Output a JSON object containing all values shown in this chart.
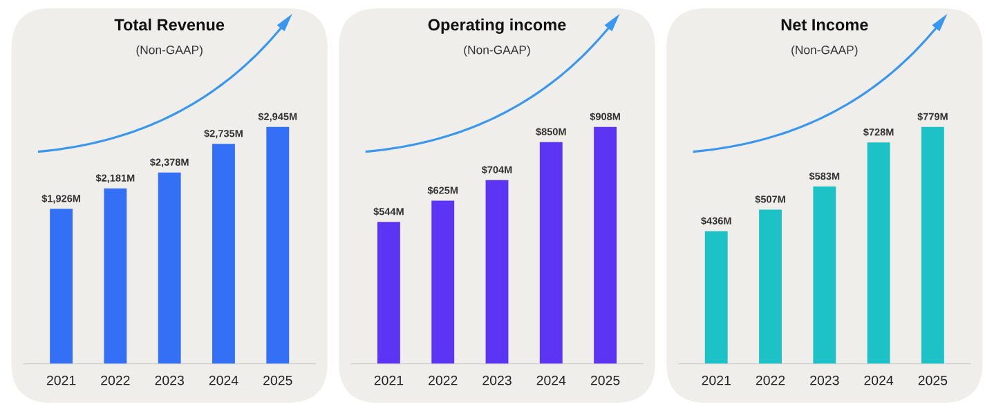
{
  "chart_data": [
    {
      "type": "bar",
      "title": "Total Revenue",
      "subtitle": "(Non-GAAP)",
      "categories": [
        "2021",
        "2022",
        "2023",
        "2024",
        "2025"
      ],
      "values": [
        1926,
        2181,
        2378,
        2735,
        2945
      ],
      "value_labels": [
        "$1,926M",
        "$2,181M",
        "$2,378M",
        "$2,735M",
        "$2,945M"
      ],
      "color": "#3370f6",
      "tick_labels": "x"
    },
    {
      "type": "bar",
      "title": "Operating income",
      "subtitle": "(Non-GAAP)",
      "categories": [
        "2021",
        "2022",
        "2023",
        "2024",
        "2025"
      ],
      "values": [
        544,
        625,
        704,
        850,
        908
      ],
      "value_labels": [
        "$544M",
        "$625M",
        "$704M",
        "$850M",
        "$908M"
      ],
      "color": "#5c35f4",
      "tick_labels": "x"
    },
    {
      "type": "bar",
      "title": "Net Income",
      "subtitle": "(Non-GAAP)",
      "categories": [
        "2021",
        "2022",
        "2023",
        "2024",
        "2025"
      ],
      "values": [
        436,
        507,
        583,
        728,
        779
      ],
      "value_labels": [
        "$436M",
        "$507M",
        "$583M",
        "$728M",
        "$779M"
      ],
      "color": "#1cc2c6",
      "tick_labels": "x"
    }
  ]
}
